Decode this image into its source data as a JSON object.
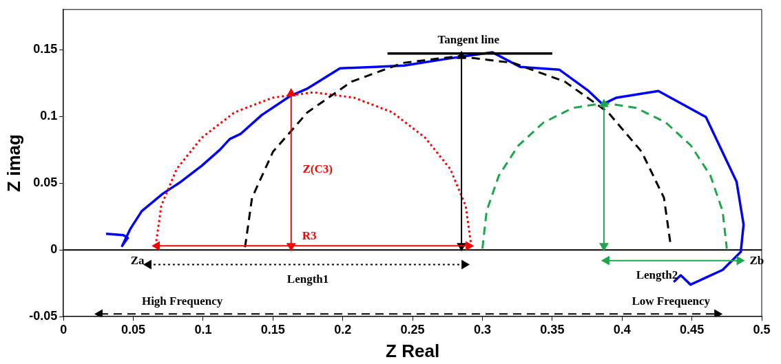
{
  "chart_data": {
    "type": "line",
    "xlabel": "Z Real",
    "ylabel": "Z imag",
    "xlim": [
      0,
      0.5
    ],
    "xticks": [
      0,
      0.05,
      0.1,
      0.15,
      0.2,
      0.25,
      0.3,
      0.35,
      0.4,
      0.45,
      0.5
    ],
    "ylim": [
      -0.05,
      0.18
    ],
    "yticks": [
      -0.05,
      0,
      0.05,
      0.1,
      0.15
    ],
    "grid": false,
    "legend": false,
    "marker": "none",
    "line_style": "solid",
    "ref_lines": [
      {
        "axis": "y",
        "value": 0,
        "color": "#000000"
      }
    ],
    "series": [
      {
        "color": "#0000ff",
        "x": [
          0.0305,
          0.043,
          0.046,
          0.042,
          0.048,
          0.056,
          0.071,
          0.084,
          0.099,
          0.112,
          0.119,
          0.127,
          0.142,
          0.162,
          0.175,
          0.198,
          0.223,
          0.244,
          0.274,
          0.307,
          0.327,
          0.355,
          0.376,
          0.386,
          0.396,
          0.426,
          0.46,
          0.482,
          0.487,
          0.485,
          0.472,
          0.449,
          0.442,
          0.437
        ],
        "values": [
          0.012,
          0.011,
          0.009,
          0.003,
          0.016,
          0.029,
          0.042,
          0.051,
          0.063,
          0.075,
          0.083,
          0.087,
          0.101,
          0.115,
          0.121,
          0.136,
          0.137,
          0.138,
          0.143,
          0.148,
          0.137,
          0.135,
          0.119,
          0.109,
          0.114,
          0.119,
          0.0995,
          0.051,
          0.019,
          -0.0015,
          -0.015,
          -0.026,
          -0.019,
          -0.024
        ]
      },
      {
        "color": "#ff0000",
        "line_style": "dotted",
        "x": [
          0.066,
          0.07,
          0.081,
          0.099,
          0.1225,
          0.15,
          0.179,
          0.208,
          0.2355,
          0.259,
          0.277,
          0.288,
          0.292
        ],
        "values": [
          0.003,
          0.033,
          0.0605,
          0.084,
          0.103,
          0.114,
          0.118,
          0.114,
          0.103,
          0.084,
          0.0605,
          0.033,
          0.003
        ]
      },
      {
        "color": "#000000",
        "line_style": "dashed",
        "x": [
          0.13,
          0.135,
          0.15,
          0.1747,
          0.2063,
          0.243,
          0.2825,
          0.322,
          0.359,
          0.39,
          0.414,
          0.43,
          0.435
        ],
        "values": [
          0.002,
          0.039,
          0.0735,
          0.103,
          0.126,
          0.14,
          0.145,
          0.14,
          0.126,
          0.103,
          0.0735,
          0.039,
          0.002
        ]
      },
      {
        "color": "#1aa84a",
        "line_style": "dashed",
        "x": [
          0.3,
          0.303,
          0.3117,
          0.3256,
          0.3438,
          0.3648,
          0.3875,
          0.41,
          0.4313,
          0.4494,
          0.4633,
          0.472,
          0.475
        ],
        "values": [
          0.001,
          0.029,
          0.0555,
          0.078,
          0.0954,
          0.1063,
          0.11,
          0.1063,
          0.0954,
          0.078,
          0.0555,
          0.029,
          0.001
        ]
      },
      {
        "color": "#000000",
        "x": [
          0.232,
          0.35
        ],
        "values": [
          0.147,
          0.147
        ]
      },
      {
        "color": "#ff0000",
        "marker": "triangle",
        "x": [
          0.163,
          0.163
        ],
        "values": [
          0.003,
          0.117
        ]
      },
      {
        "color": "#000000",
        "marker": "triangle",
        "x": [
          0.285,
          0.285
        ],
        "values": [
          0.003,
          0.145
        ]
      },
      {
        "color": "#1aa84a",
        "marker": "triangle",
        "x": [
          0.387,
          0.387
        ],
        "values": [
          0.003,
          0.109
        ]
      },
      {
        "color": "#ff0000",
        "marker": "triangle",
        "x": [
          0.067,
          0.29
        ],
        "values": [
          0.003,
          0.003
        ]
      },
      {
        "color": "#000000",
        "marker": "triangle",
        "line_style": "dotted",
        "x": [
          0.061,
          0.287
        ],
        "values": [
          -0.011,
          -0.011
        ]
      },
      {
        "color": "#1aa84a",
        "marker": "triangle",
        "x": [
          0.389,
          0.484
        ],
        "values": [
          -0.008,
          -0.008
        ]
      },
      {
        "color": "#000000",
        "marker": "triangle",
        "line_style": "dashed",
        "x": [
          0.026,
          0.468
        ],
        "values": [
          -0.048,
          -0.048
        ]
      }
    ],
    "annotations": [
      "Tangent line",
      "Z(C3)",
      "R3",
      "Za",
      "Zb",
      "Length1",
      "Length2",
      "High Frequency",
      "Low Frequency"
    ]
  }
}
